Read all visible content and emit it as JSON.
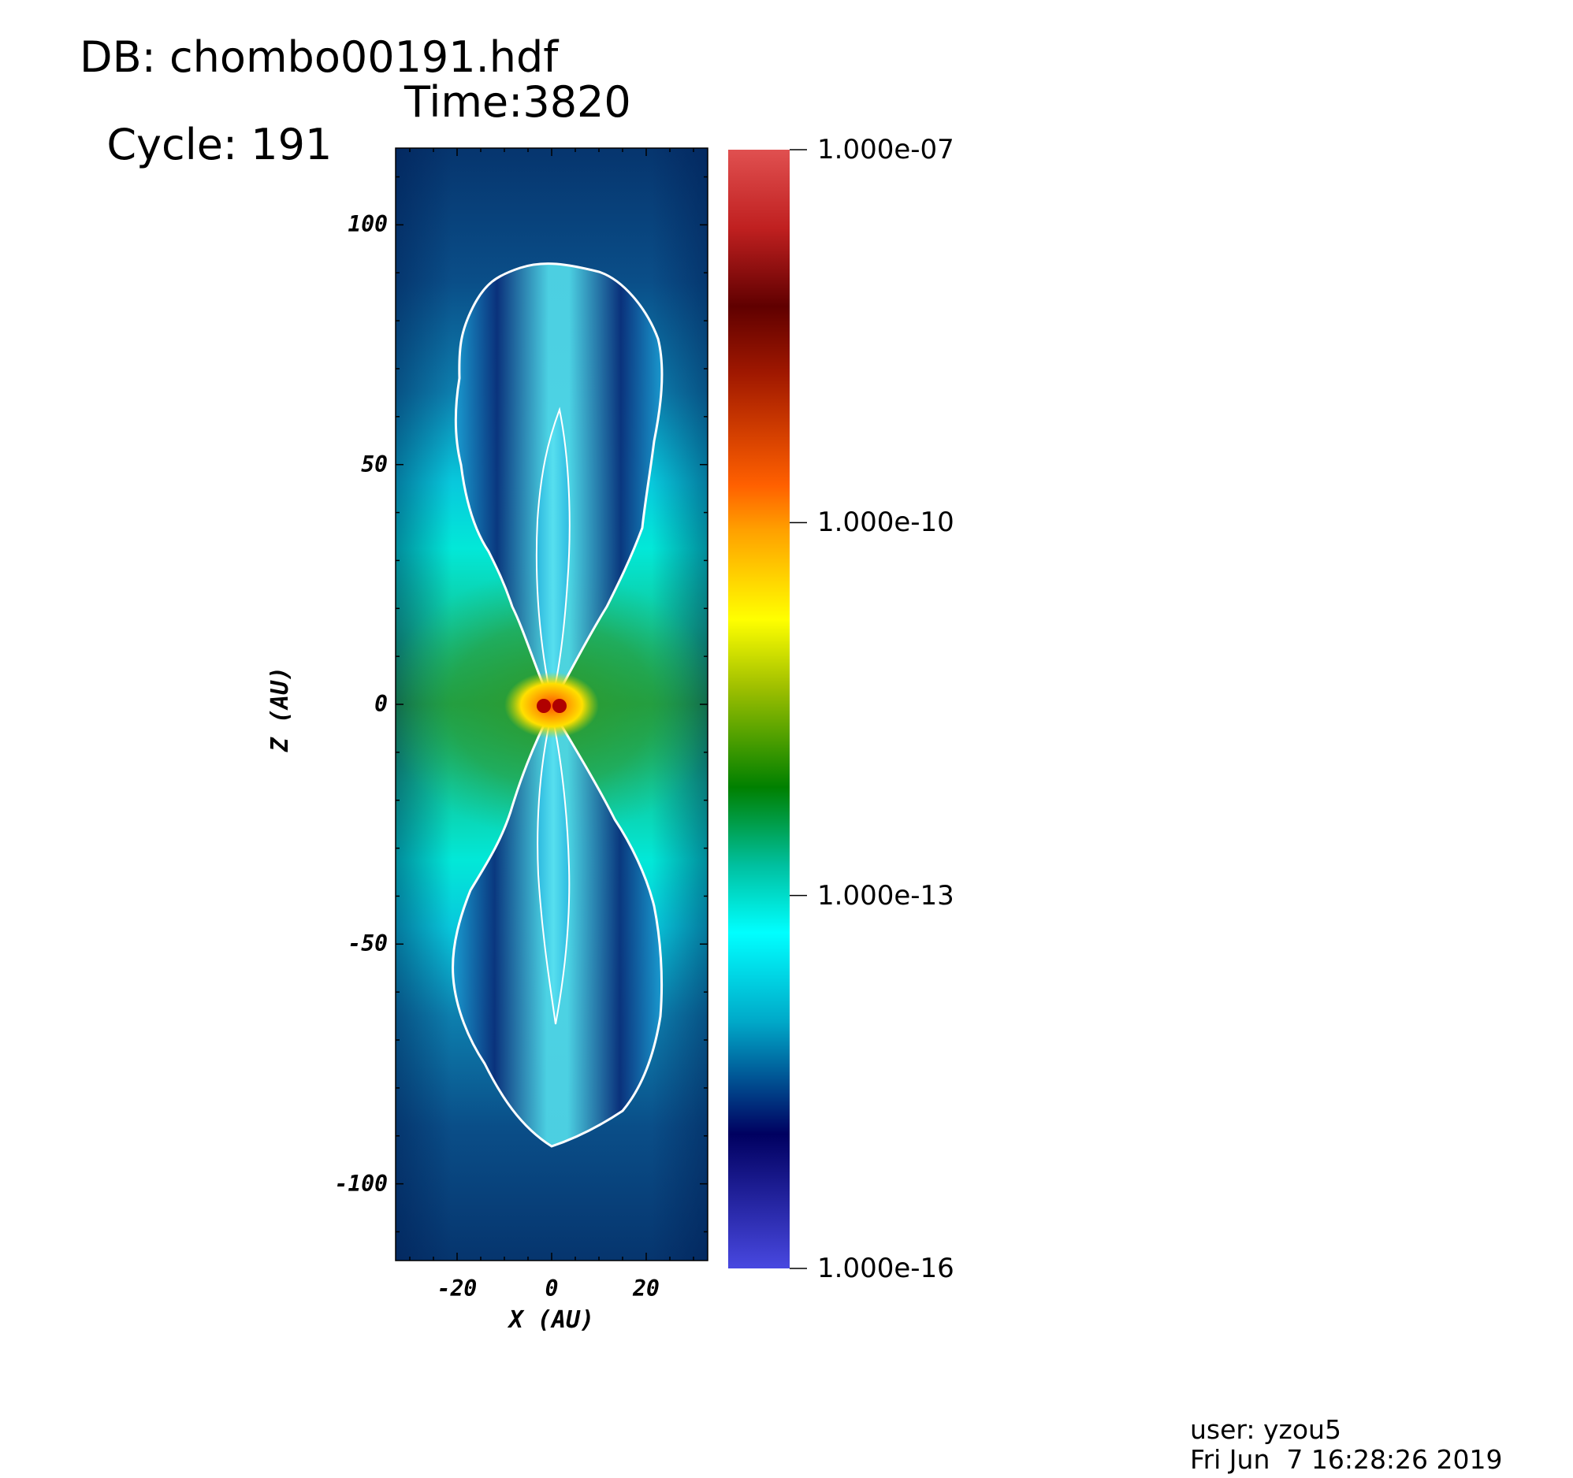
{
  "header": {
    "db": "DB: chombo00191.hdf",
    "cycle": "Cycle: 191",
    "time": "Time:3820"
  },
  "plot": {
    "xlabel": "X (AU)",
    "zlabel": "Z (AU)",
    "x_ticks": [
      "-20",
      "0",
      "20"
    ],
    "z_ticks": [
      "100",
      "50",
      "0",
      "-50",
      "-100"
    ],
    "x_range": [
      -33,
      33
    ],
    "z_range": [
      -116,
      116
    ]
  },
  "colorbar": {
    "labels": [
      "1.000e-07",
      "1.000e-10",
      "1.000e-13",
      "1.000e-16"
    ],
    "colors": [
      "#4848e0",
      "#000060",
      "#00a8c8",
      "#00ffff",
      "#00c0a0",
      "#008000",
      "#c0d000",
      "#ffff00",
      "#ffa000",
      "#ff6000",
      "#a01800",
      "#600000",
      "#c02020",
      "#e05050"
    ]
  },
  "footer": {
    "user": "user: yzou5",
    "date": "Fri Jun  7 16:28:26 2019"
  }
}
